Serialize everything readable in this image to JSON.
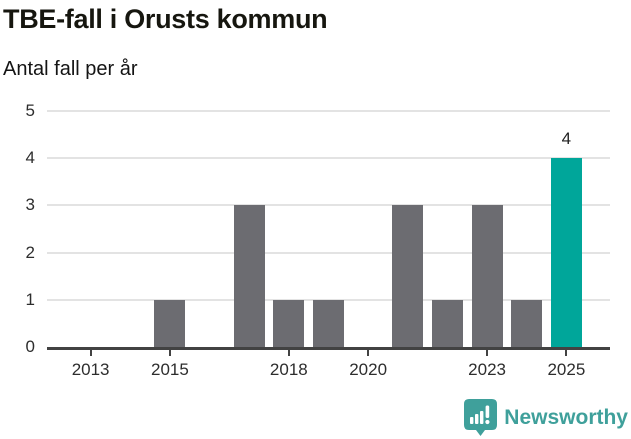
{
  "chart_data": {
    "type": "bar",
    "title": "TBE-fall i Orusts kommun",
    "subtitle": "Antal fall per år",
    "xlabel": "",
    "ylabel": "Antal fall per år",
    "categories": [
      2012,
      2013,
      2014,
      2015,
      2016,
      2017,
      2018,
      2019,
      2020,
      2021,
      2022,
      2023,
      2024,
      2025
    ],
    "values": [
      0,
      0,
      0,
      1,
      0,
      3,
      1,
      1,
      0,
      3,
      1,
      3,
      1,
      4
    ],
    "xticks": [
      2013,
      2015,
      2018,
      2020,
      2023,
      2025
    ],
    "yticks": [
      0,
      1,
      2,
      3,
      4,
      5
    ],
    "xlim": [
      2011.9,
      2026.1
    ],
    "ylim": [
      0,
      5
    ],
    "grid": true,
    "legend_position": "none",
    "bar_color": "#6c6c71",
    "highlight_year": 2025,
    "highlight_color": "#00a69a",
    "annotations": [
      {
        "year": 2025,
        "value": 4,
        "label": "4"
      }
    ]
  },
  "footer": {
    "brand": "Newsworthy",
    "logo_color": "#3fa09b"
  }
}
